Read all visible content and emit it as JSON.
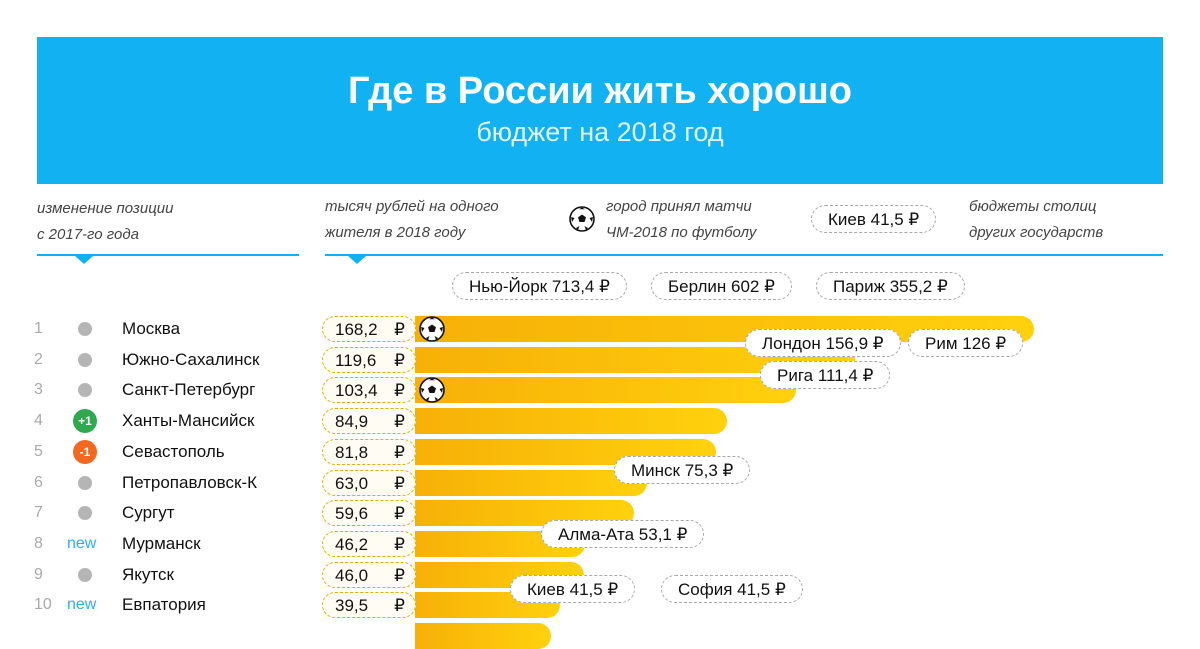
{
  "header": {
    "title": "Где в России жить хорошо",
    "subtitle": "бюджет на 2018 год"
  },
  "legend": {
    "position_change_line1": "изменение позиции",
    "position_change_line2": "с 2017-го года",
    "per_capita_line1": "тысяч рублей на одного",
    "per_capita_line2": "жителя в 2018 году",
    "world_cup_line1": "город принял матчи",
    "world_cup_line2": "ЧМ-2018 по футболу",
    "capitals_example": "Киев 41,5 ₽",
    "capitals_line1": "бюджеты столиц",
    "capitals_line2": "других государств"
  },
  "colors": {
    "accent_blue": "#12b2f2",
    "bar_start": "#f7b007",
    "bar_end": "#ffd10d",
    "up": "#2fa84f",
    "down": "#f26a21",
    "no_change": "#b5b5b5",
    "new": "#2bb0ee"
  },
  "chart_data": {
    "type": "bar",
    "orientation": "horizontal",
    "unit": "₽",
    "rows": [
      {
        "rank": "1",
        "change": "same",
        "city": "Москва",
        "value": 168.2,
        "label": "168,2",
        "world_cup": true
      },
      {
        "rank": "2",
        "change": "same",
        "city": "Южно-Сахалинск",
        "value": 119.6,
        "label": "119,6",
        "world_cup": false
      },
      {
        "rank": "3",
        "change": "same",
        "city": "Санкт-Петербург",
        "value": 103.4,
        "label": "103,4",
        "world_cup": true
      },
      {
        "rank": "4",
        "change": "up",
        "change_label": "+1",
        "city": "Ханты-Мансийск",
        "value": 84.9,
        "label": "84,9",
        "world_cup": false
      },
      {
        "rank": "5",
        "change": "down",
        "change_label": "-1",
        "city": "Севастополь",
        "value": 81.8,
        "label": "81,8",
        "world_cup": false
      },
      {
        "rank": "6",
        "change": "same",
        "city": "Петропавловск-К",
        "value": 63.0,
        "label": "63,0",
        "world_cup": false
      },
      {
        "rank": "7",
        "change": "same",
        "city": "Сургут",
        "value": 59.6,
        "label": "59,6",
        "world_cup": false
      },
      {
        "rank": "8",
        "change": "new",
        "change_label": "new",
        "city": "Мурманск",
        "value": 46.2,
        "label": "46,2",
        "world_cup": false
      },
      {
        "rank": "9",
        "change": "same",
        "city": "Якутск",
        "value": 46.0,
        "label": "46,0",
        "world_cup": false
      },
      {
        "rank": "10",
        "change": "new",
        "change_label": "new",
        "city": "Евпатория",
        "value": 39.5,
        "label": "39,5",
        "world_cup": false
      },
      {
        "rank": "",
        "change": "none",
        "city": "",
        "value": 37.0,
        "label": "",
        "world_cup": false
      }
    ],
    "capitals": [
      {
        "label": "Нью-Йорк 713,4 ₽",
        "value": 713.4
      },
      {
        "label": "Берлин 602 ₽",
        "value": 602
      },
      {
        "label": "Париж 355,2 ₽",
        "value": 355.2
      },
      {
        "label": "Лондон 156,9 ₽",
        "value": 156.9
      },
      {
        "label": "Рим 126 ₽",
        "value": 126
      },
      {
        "label": "Рига 111,4 ₽",
        "value": 111.4
      },
      {
        "label": "Минск 75,3 ₽",
        "value": 75.3
      },
      {
        "label": "Алма-Ата 53,1 ₽",
        "value": 53.1
      },
      {
        "label": "Киев 41,5 ₽",
        "value": 41.5
      },
      {
        "label": "София 41,5 ₽",
        "value": 41.5
      }
    ]
  }
}
